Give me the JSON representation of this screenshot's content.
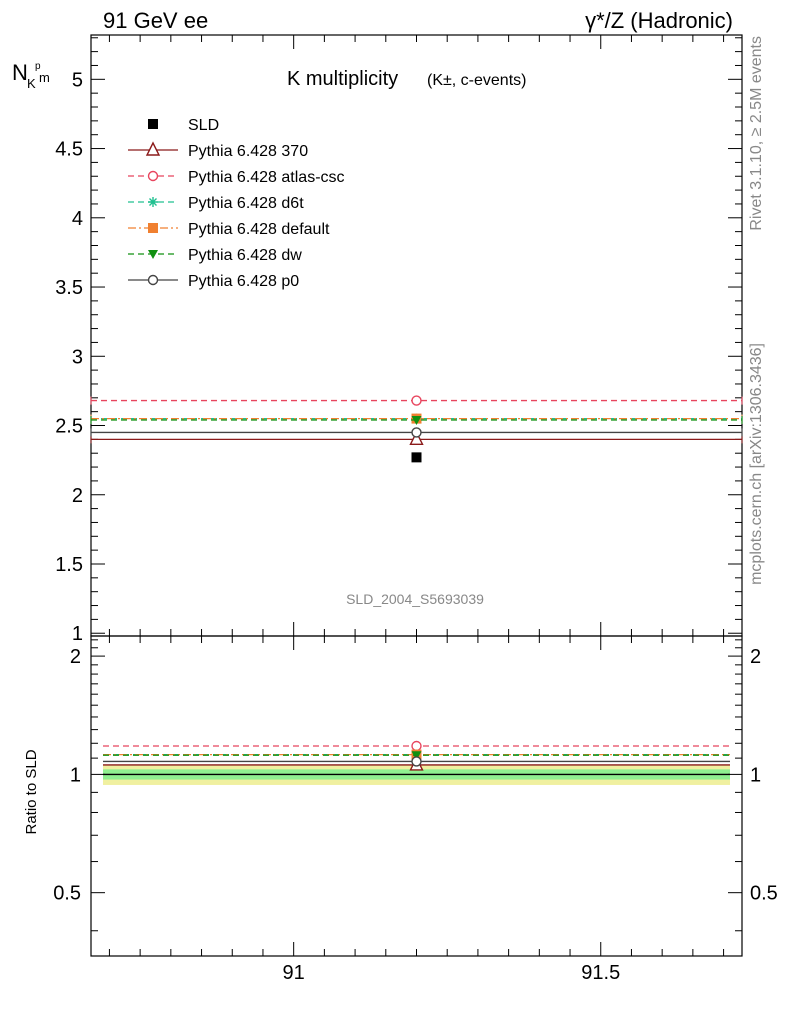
{
  "header": {
    "left": "91 GeV ee",
    "right": "γ*/Z (Hadronic)"
  },
  "side_labels": {
    "rivet": "Rivet 3.1.10, ≥ 2.5M events",
    "mcplots": "mcplots.cern.ch [arXiv:1306.3436]"
  },
  "watermark": "SLD_2004_S5693039",
  "colors": {
    "SLD": "#000000",
    "Pythia 6.428 370": "#8b1a1a",
    "Pythia 6.428 atlas-csc": "#e8455e",
    "Pythia 6.428 d6t": "#20c090",
    "Pythia 6.428 default": "#f08030",
    "Pythia 6.428 dw": "#109010",
    "Pythia 6.428 p0": "#444444",
    "band_inner": "#90f090",
    "band_outer": "#f0f0a0"
  },
  "chart_data": [
    {
      "type": "line",
      "title": "K multiplicity (K±, c-events)",
      "title_main": "K multiplicity",
      "title_sub": "(K±, c-events)",
      "ylabel": "N_K^p_m",
      "ylabel_main": "N",
      "ylabel_sub1": "K",
      "ylabel_sup": "p",
      "ylabel_sub2": "m",
      "xlim": [
        90.67,
        91.73
      ],
      "ylim": [
        0.98,
        5.32
      ],
      "yticks": [
        "1",
        "1.5",
        "2",
        "2.5",
        "3",
        "3.5",
        "4",
        "4.5",
        "5"
      ],
      "x_point": 91.2,
      "x_range": [
        90.67,
        91.73
      ],
      "legend_position": "top-left",
      "series": [
        {
          "name": "SLD",
          "marker": "square",
          "value": 2.27,
          "line": false
        },
        {
          "name": "Pythia 6.428 370",
          "marker": "triangle-open",
          "value": 2.4,
          "line": "solid"
        },
        {
          "name": "Pythia 6.428 atlas-csc",
          "marker": "circle-open",
          "value": 2.68,
          "line": "dashed"
        },
        {
          "name": "Pythia 6.428 d6t",
          "marker": "star",
          "value": 2.55,
          "line": "dashed"
        },
        {
          "name": "Pythia 6.428 default",
          "marker": "square",
          "value": 2.55,
          "line": "dashdot"
        },
        {
          "name": "Pythia 6.428 dw",
          "marker": "triangle-down",
          "value": 2.54,
          "line": "dashed"
        },
        {
          "name": "Pythia 6.428 p0",
          "marker": "circle-open",
          "value": 2.45,
          "line": "solid"
        }
      ]
    },
    {
      "type": "line",
      "ylabel": "Ratio to SLD",
      "xlim": [
        90.67,
        91.73
      ],
      "ylim": [
        0.345,
        2.25
      ],
      "yticks": [
        "0.5",
        "1",
        "2"
      ],
      "xticks": [
        "91",
        "91.5"
      ],
      "band_inner": [
        0.97,
        1.03
      ],
      "band_outer": [
        0.94,
        1.06
      ],
      "series": [
        {
          "name": "Pythia 6.428 370",
          "value": 1.057
        },
        {
          "name": "Pythia 6.428 atlas-csc",
          "value": 1.181
        },
        {
          "name": "Pythia 6.428 d6t",
          "value": 1.123
        },
        {
          "name": "Pythia 6.428 default",
          "value": 1.123
        },
        {
          "name": "Pythia 6.428 dw",
          "value": 1.119
        },
        {
          "name": "Pythia 6.428 p0",
          "value": 1.079
        }
      ]
    }
  ]
}
